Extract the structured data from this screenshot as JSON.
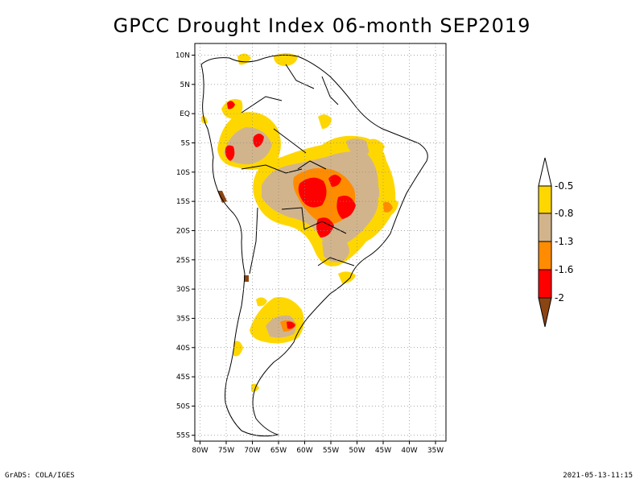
{
  "title": "GPCC Drought Index 06-month SEP2019",
  "footer": {
    "left": "GrADS: COLA/IGES",
    "right": "2021-05-13-11:15"
  },
  "map": {
    "lat_labels": [
      "10N",
      "5N",
      "EQ",
      "5S",
      "10S",
      "15S",
      "20S",
      "25S",
      "30S",
      "35S",
      "40S",
      "45S",
      "50S",
      "55S"
    ],
    "lon_labels": [
      "80W",
      "75W",
      "70W",
      "65W",
      "60W",
      "55W",
      "50W",
      "45W",
      "40W",
      "35W"
    ],
    "lat_range": [
      -56,
      12
    ],
    "lon_range": [
      -81,
      -33
    ]
  },
  "legend": {
    "labels": [
      "-0.5",
      "-0.8",
      "-1.3",
      "-1.6",
      "-2"
    ],
    "colors": {
      "above_minus_0_5": "#ffffff",
      "minus_0_5_to_minus_0_8": "#ffd700",
      "minus_0_8_to_minus_1_3": "#d2b48c",
      "minus_1_3_to_minus_1_6": "#ff8c00",
      "minus_1_6_to_minus_2": "#ff0000",
      "below_minus_2": "#8b4513"
    }
  }
}
